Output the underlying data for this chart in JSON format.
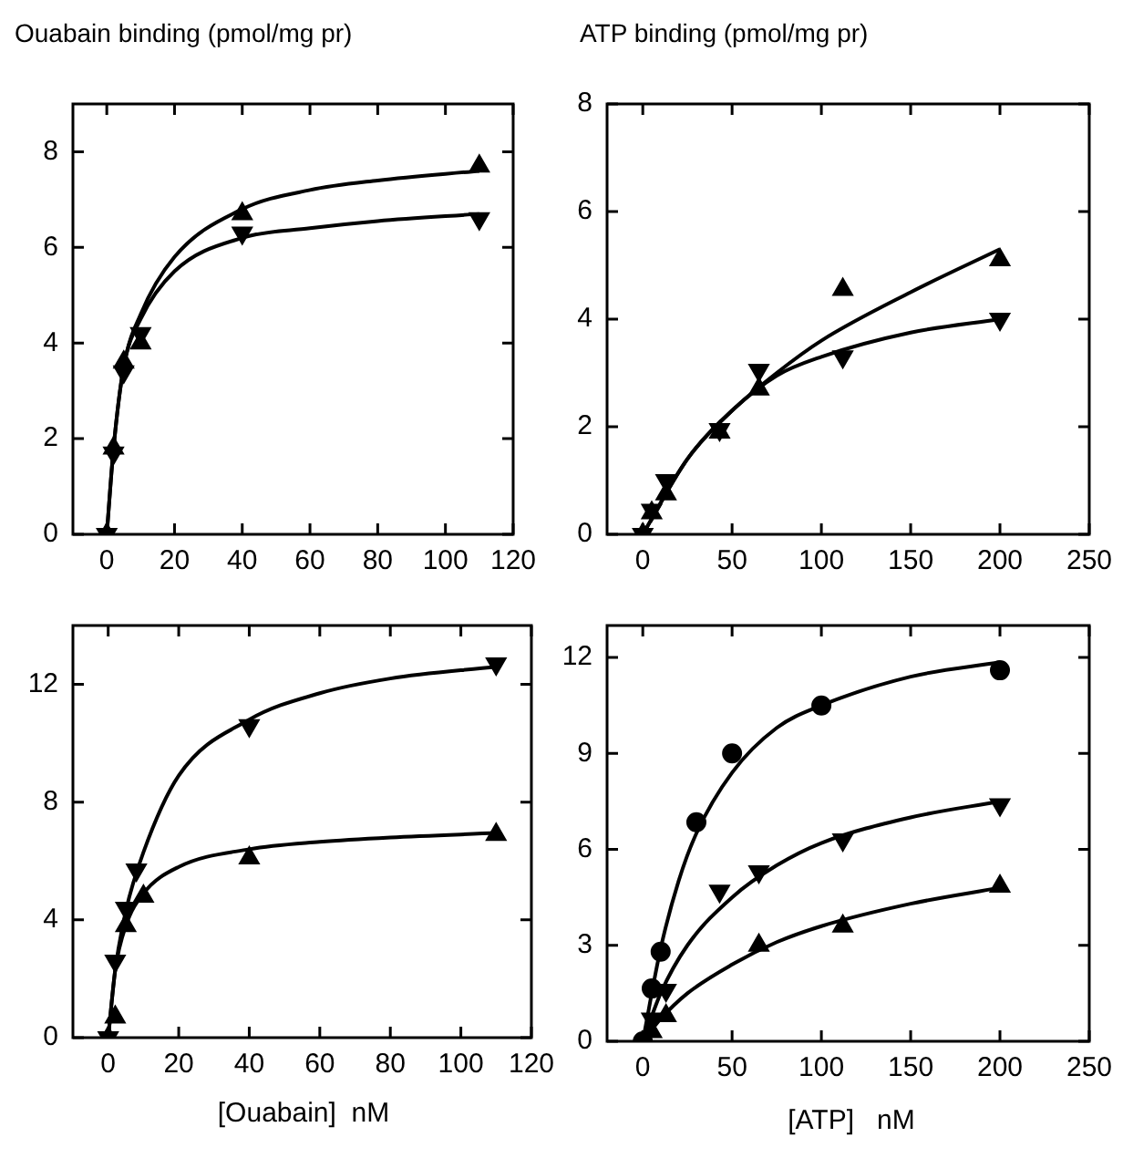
{
  "chart_data": [
    {
      "type": "scatter",
      "title": "Ouabain binding (pmol/mg pr)",
      "xlim": [
        -10,
        120
      ],
      "xticks": [
        0,
        20,
        40,
        60,
        80,
        100,
        120
      ],
      "ylim": [
        0,
        9
      ],
      "yticks": [
        0,
        2,
        4,
        6,
        8
      ],
      "series": [
        {
          "type": "scatter",
          "marker": "triangle",
          "color": "#000000",
          "x": [
            0,
            2,
            5,
            10,
            40,
            110
          ],
          "values": [
            0,
            1.8,
            3.6,
            4.0,
            6.7,
            7.7
          ]
        },
        {
          "type": "scatter",
          "marker": "triangle-down",
          "color": "#000000",
          "x": [
            0,
            2,
            5,
            10,
            40,
            110
          ],
          "values": [
            0,
            1.7,
            3.4,
            4.2,
            6.3,
            6.6
          ]
        },
        {
          "type": "line",
          "marker": "none",
          "color": "#000000",
          "x": [
            0,
            2,
            5,
            10,
            20,
            40,
            60,
            80,
            110
          ],
          "values": [
            0,
            1.8,
            3.5,
            4.6,
            5.8,
            6.8,
            7.2,
            7.4,
            7.6
          ]
        },
        {
          "type": "line",
          "marker": "none",
          "color": "#000000",
          "x": [
            0,
            2,
            5,
            10,
            20,
            40,
            60,
            80,
            110
          ],
          "values": [
            0,
            1.8,
            3.5,
            4.5,
            5.5,
            6.2,
            6.4,
            6.55,
            6.7
          ]
        }
      ]
    },
    {
      "type": "scatter",
      "title": "ATP binding (pmol/mg pr)",
      "xlim": [
        -20,
        250
      ],
      "xticks": [
        0,
        50,
        100,
        150,
        200,
        250
      ],
      "ylim": [
        0,
        8
      ],
      "yticks": [
        0,
        2,
        4,
        6,
        8
      ],
      "series": [
        {
          "type": "scatter",
          "marker": "triangle",
          "color": "#000000",
          "x": [
            0,
            5,
            13,
            43,
            65,
            112,
            200
          ],
          "values": [
            0,
            0.4,
            0.75,
            1.9,
            2.7,
            4.55,
            5.1
          ]
        },
        {
          "type": "scatter",
          "marker": "triangle-down",
          "color": "#000000",
          "x": [
            0,
            5,
            13,
            43,
            65,
            112,
            200
          ],
          "values": [
            0,
            0.45,
            1.0,
            1.95,
            3.05,
            3.3,
            4.0
          ]
        },
        {
          "type": "line",
          "marker": "none",
          "color": "#000000",
          "x": [
            0,
            25,
            50,
            75,
            100,
            150,
            200
          ],
          "values": [
            0,
            1.4,
            2.3,
            3.0,
            3.6,
            4.5,
            5.3
          ]
        },
        {
          "type": "line",
          "marker": "none",
          "color": "#000000",
          "x": [
            0,
            25,
            50,
            75,
            100,
            150,
            200
          ],
          "values": [
            0,
            1.4,
            2.3,
            2.95,
            3.3,
            3.75,
            4.0
          ]
        }
      ]
    },
    {
      "type": "scatter",
      "xlabel": "[Ouabain]  nM",
      "xlim": [
        -10,
        120
      ],
      "xticks": [
        0,
        20,
        40,
        60,
        80,
        100,
        120
      ],
      "ylim": [
        0,
        14
      ],
      "yticks": [
        0,
        4,
        8,
        12
      ],
      "series": [
        {
          "type": "scatter",
          "marker": "triangle-down",
          "color": "#000000",
          "x": [
            0,
            2,
            5,
            8,
            40,
            110
          ],
          "values": [
            0,
            2.6,
            4.4,
            5.7,
            10.6,
            12.7
          ]
        },
        {
          "type": "scatter",
          "marker": "triangle",
          "color": "#000000",
          "x": [
            0,
            2,
            5,
            10,
            40,
            110
          ],
          "values": [
            0,
            0.7,
            3.8,
            4.8,
            6.1,
            6.9
          ]
        },
        {
          "type": "line",
          "marker": "none",
          "color": "#000000",
          "x": [
            0,
            2,
            5,
            10,
            20,
            40,
            60,
            80,
            110
          ],
          "values": [
            0,
            2.3,
            4.3,
            6.3,
            8.9,
            10.8,
            11.7,
            12.2,
            12.6
          ]
        },
        {
          "type": "line",
          "marker": "none",
          "color": "#000000",
          "x": [
            0,
            2,
            5,
            10,
            20,
            40,
            60,
            80,
            110
          ],
          "values": [
            0,
            2.3,
            3.8,
            4.9,
            5.8,
            6.4,
            6.65,
            6.8,
            6.95
          ]
        }
      ]
    },
    {
      "type": "scatter",
      "xlabel": "[ATP]   nM",
      "xlim": [
        -20,
        250
      ],
      "xticks": [
        0,
        50,
        100,
        150,
        200,
        250
      ],
      "ylim": [
        0,
        13
      ],
      "yticks": [
        0,
        3,
        6,
        9,
        12
      ],
      "series": [
        {
          "type": "scatter",
          "marker": "circle",
          "color": "#000000",
          "x": [
            0,
            5,
            10,
            30,
            50,
            100,
            200
          ],
          "values": [
            0,
            1.65,
            2.8,
            6.85,
            9.0,
            10.5,
            11.6
          ]
        },
        {
          "type": "scatter",
          "marker": "triangle-down",
          "color": "#000000",
          "x": [
            5,
            13,
            43,
            65,
            112,
            200
          ],
          "values": [
            0.7,
            1.6,
            4.7,
            5.3,
            6.3,
            7.4
          ]
        },
        {
          "type": "scatter",
          "marker": "triangle",
          "color": "#000000",
          "x": [
            5,
            13,
            65,
            112,
            200
          ],
          "values": [
            0.3,
            0.8,
            3.0,
            3.6,
            4.85
          ]
        },
        {
          "type": "line",
          "marker": "none",
          "color": "#000000",
          "x": [
            0,
            10,
            20,
            30,
            50,
            75,
            100,
            150,
            200
          ],
          "values": [
            0,
            2.9,
            5.0,
            6.5,
            8.4,
            9.8,
            10.5,
            11.4,
            11.85
          ]
        },
        {
          "type": "line",
          "marker": "none",
          "color": "#000000",
          "x": [
            0,
            10,
            25,
            50,
            75,
            100,
            150,
            200
          ],
          "values": [
            0,
            1.5,
            3.0,
            4.5,
            5.5,
            6.2,
            7.0,
            7.5
          ]
        },
        {
          "type": "line",
          "marker": "none",
          "color": "#000000",
          "x": [
            0,
            10,
            25,
            50,
            75,
            100,
            150,
            200
          ],
          "values": [
            0,
            0.7,
            1.5,
            2.4,
            3.1,
            3.6,
            4.3,
            4.8
          ]
        }
      ]
    }
  ]
}
